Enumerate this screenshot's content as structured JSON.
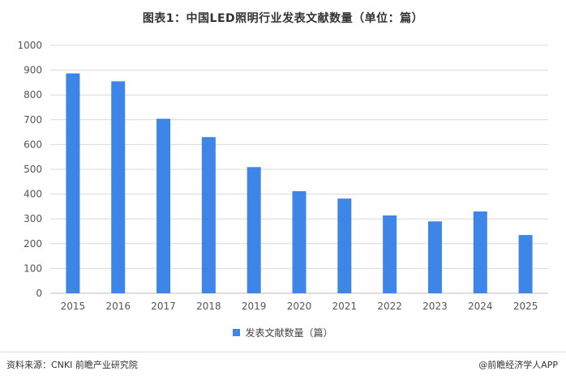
{
  "chart_data": {
    "type": "bar",
    "title": "图表1：中国LED照明行业发表文献数量（单位：篇）",
    "categories": [
      "2015",
      "2016",
      "2017",
      "2018",
      "2019",
      "2020",
      "2021",
      "2022",
      "2023",
      "2024",
      "2025"
    ],
    "series": [
      {
        "name": "发表文献数量（篇）",
        "values": [
          887,
          855,
          704,
          630,
          509,
          412,
          382,
          314,
          290,
          330,
          235
        ],
        "color": "#3d86e8"
      }
    ],
    "ylim": [
      0,
      1000
    ],
    "yticks": [
      0,
      100,
      200,
      300,
      400,
      500,
      600,
      700,
      800,
      900,
      1000
    ],
    "grid": true,
    "legend": "bottom-center"
  },
  "footer": {
    "source": "资料来源：CNKI 前瞻产业研究院",
    "brand": "@前瞻经济学人APP"
  }
}
